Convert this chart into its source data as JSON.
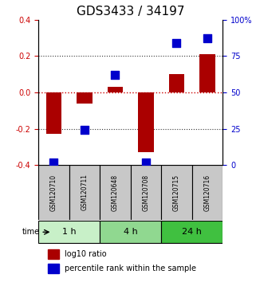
{
  "title": "GDS3433 / 34197",
  "samples": [
    "GSM120710",
    "GSM120711",
    "GSM120648",
    "GSM120708",
    "GSM120715",
    "GSM120716"
  ],
  "log10_ratio": [
    -0.23,
    -0.06,
    0.03,
    -0.33,
    0.1,
    0.21
  ],
  "percentile_rank": [
    2,
    24,
    62,
    2,
    84,
    87
  ],
  "groups": [
    {
      "label": "1 h",
      "indices": [
        0,
        1
      ],
      "color": "#c8f0c8"
    },
    {
      "label": "4 h",
      "indices": [
        2,
        3
      ],
      "color": "#90d890"
    },
    {
      "label": "24 h",
      "indices": [
        4,
        5
      ],
      "color": "#40c040"
    }
  ],
  "ylim_left": [
    -0.4,
    0.4
  ],
  "ylim_right": [
    0,
    100
  ],
  "yticks_left": [
    -0.4,
    -0.2,
    0.0,
    0.2,
    0.4
  ],
  "yticks_right": [
    0,
    25,
    50,
    75,
    100
  ],
  "bar_color": "#aa0000",
  "dot_color": "#0000cc",
  "zero_line_color": "#cc0000",
  "dotted_line_color": "#333333",
  "background_color": "#ffffff",
  "bar_width": 0.5,
  "dot_size": 60,
  "legend_bar_label": "log10 ratio",
  "legend_dot_label": "percentile rank within the sample",
  "time_label": "time",
  "xlabel_fontsize": 7,
  "title_fontsize": 11
}
